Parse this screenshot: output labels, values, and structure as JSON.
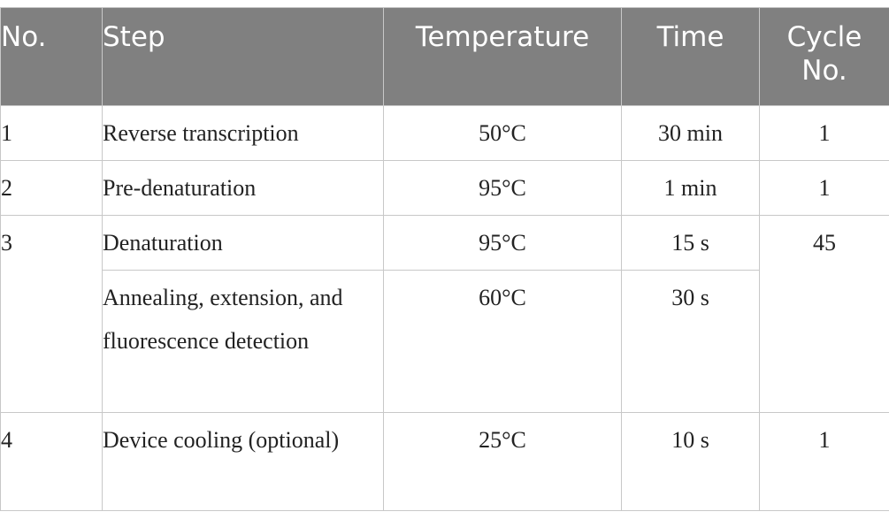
{
  "headers": {
    "no": "No.",
    "step": "Step",
    "temperature": "Temperature",
    "time": "Time",
    "cycle": "Cycle No."
  },
  "rows": [
    {
      "no": "1",
      "step": "Reverse transcription",
      "temperature": "50°C",
      "time": "30 min",
      "cycle": "1"
    },
    {
      "no": "2",
      "step": "Pre-denaturation",
      "temperature": "95°C",
      "time": "1 min",
      "cycle": "1"
    },
    {
      "no": "3",
      "step": "Denaturation",
      "temperature": "95°C",
      "time": "15 s",
      "cycle": "45"
    },
    {
      "no": "",
      "step": "Annealing, extension, and fluorescence detection",
      "temperature": "60°C",
      "time": "30 s",
      "cycle": ""
    },
    {
      "no": "4",
      "step": "Device cooling (optional)",
      "temperature": "25°C",
      "time": "10 s",
      "cycle": "1"
    }
  ],
  "colors": {
    "header_bg": "#808080",
    "header_text": "#ffffff",
    "border": "#c8c8c8",
    "body_text": "#222222"
  }
}
